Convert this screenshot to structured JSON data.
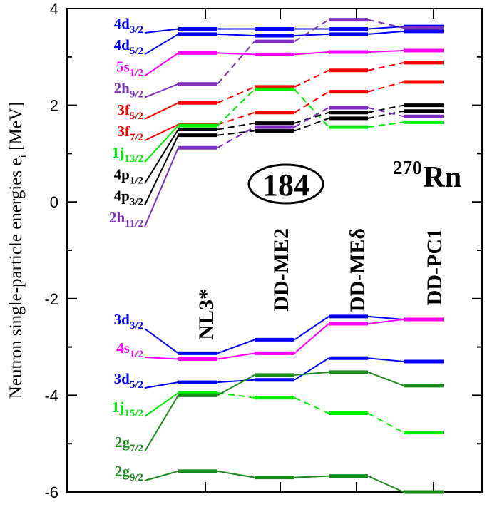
{
  "chart_data": {
    "type": "level-scheme",
    "nucleus": {
      "mass": "270",
      "symbol": "Rn"
    },
    "shell_gap_label": "184",
    "ylabel": "Neutron  single-particle  energies  e",
    "ylabel_sub": "i",
    "ylabel_unit": "[MeV]",
    "ylim": [
      -6,
      4
    ],
    "yticks": [
      -6,
      -4,
      -2,
      0,
      2,
      4
    ],
    "yticklabels": [
      "-6",
      "-4",
      "-2",
      "0",
      "2",
      "4"
    ],
    "colors": {
      "blue": "#0000ff",
      "magenta": "#ff00ff",
      "purple": "#7f2fbf",
      "red": "#ff0000",
      "lime": "#00ee00",
      "black": "#000000",
      "green": "#1a8a1a"
    },
    "models": [
      "NL3*",
      "DD-ME2",
      "DD-MEδ",
      "DD-PC1"
    ],
    "levels": [
      {
        "state": "4d",
        "j": "3/2",
        "color": "blue",
        "group": "upper",
        "dashed": false,
        "energies": [
          3.58,
          3.58,
          3.58,
          3.63
        ]
      },
      {
        "state": "4d",
        "j": "5/2",
        "color": "blue",
        "group": "upper",
        "dashed": false,
        "energies": [
          3.47,
          3.44,
          3.47,
          3.53
        ]
      },
      {
        "state": "5s",
        "j": "1/2",
        "color": "magenta",
        "group": "upper",
        "dashed": false,
        "energies": [
          3.08,
          3.05,
          3.1,
          3.13
        ]
      },
      {
        "state": "2h",
        "j": "9/2",
        "color": "purple",
        "group": "upper",
        "dashed": true,
        "energies": [
          2.44,
          3.32,
          3.77,
          3.6
        ]
      },
      {
        "state": "3f",
        "j": "5/2",
        "color": "red",
        "group": "upper",
        "dashed": true,
        "energies": [
          2.05,
          2.38,
          2.72,
          2.88
        ]
      },
      {
        "state": "3f",
        "j": "7/2",
        "color": "red",
        "group": "upper",
        "dashed": true,
        "energies": [
          1.6,
          1.85,
          2.28,
          2.48
        ]
      },
      {
        "state": "1j",
        "j": "13/2",
        "color": "lime",
        "group": "upper",
        "dashed": true,
        "energies": [
          1.58,
          2.33,
          1.55,
          1.65
        ]
      },
      {
        "state": "4p",
        "j": "1/2",
        "color": "black",
        "group": "upper",
        "dashed": true,
        "energies": [
          1.5,
          1.63,
          1.85,
          2.0
        ]
      },
      {
        "state": "4p",
        "j": "3/2",
        "color": "black",
        "group": "upper",
        "dashed": true,
        "energies": [
          1.38,
          1.47,
          1.73,
          1.88
        ]
      },
      {
        "state": "2h",
        "j": "11/2",
        "color": "purple",
        "group": "upper",
        "dashed": true,
        "energies": [
          1.12,
          1.55,
          1.95,
          1.77
        ]
      },
      {
        "state": "3d",
        "j": "3/2",
        "color": "blue",
        "group": "lower",
        "dashed": false,
        "energies": [
          -3.13,
          -2.85,
          -2.37,
          -2.43
        ]
      },
      {
        "state": "4s",
        "j": "1/2",
        "color": "magenta",
        "group": "lower",
        "dashed": false,
        "energies": [
          -3.25,
          -3.13,
          -2.52,
          -2.43
        ]
      },
      {
        "state": "3d",
        "j": "5/2",
        "color": "blue",
        "group": "lower",
        "dashed": false,
        "energies": [
          -3.73,
          -3.68,
          -3.23,
          -3.3
        ]
      },
      {
        "state": "1j",
        "j": "15/2",
        "color": "lime",
        "group": "lower",
        "dashed": true,
        "energies": [
          -3.95,
          -4.05,
          -4.37,
          -4.77
        ]
      },
      {
        "state": "2g",
        "j": "7/2",
        "color": "green",
        "group": "lower",
        "dashed": false,
        "energies": [
          -4.0,
          -3.58,
          -3.52,
          -3.8
        ]
      },
      {
        "state": "2g",
        "j": "9/2",
        "color": "green",
        "group": "lower",
        "dashed": false,
        "energies": [
          -5.57,
          -5.7,
          -5.67,
          -6.0
        ]
      }
    ]
  }
}
